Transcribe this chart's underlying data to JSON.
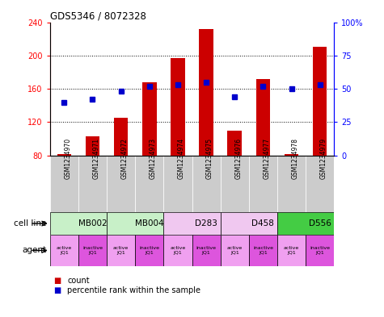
{
  "title": "GDS5346 / 8072328",
  "samples": [
    "GSM1234970",
    "GSM1234971",
    "GSM1234972",
    "GSM1234973",
    "GSM1234974",
    "GSM1234975",
    "GSM1234976",
    "GSM1234977",
    "GSM1234978",
    "GSM1234979"
  ],
  "counts": [
    82,
    103,
    125,
    168,
    197,
    232,
    110,
    172,
    82,
    210
  ],
  "percentiles": [
    40,
    42,
    48,
    52,
    53,
    55,
    44,
    52,
    50,
    53
  ],
  "ymin": 80,
  "ymax": 240,
  "yticks_left": [
    80,
    120,
    160,
    200,
    240
  ],
  "yticks_right": [
    0,
    25,
    50,
    75,
    100
  ],
  "cell_lines": [
    {
      "label": "MB002",
      "start": 0,
      "end": 2,
      "color": "#c8f0c8"
    },
    {
      "label": "MB004",
      "start": 2,
      "end": 4,
      "color": "#c8f0c8"
    },
    {
      "label": "D283",
      "start": 4,
      "end": 6,
      "color": "#f0c8f0"
    },
    {
      "label": "D458",
      "start": 6,
      "end": 8,
      "color": "#f0c8f0"
    },
    {
      "label": "D556",
      "start": 8,
      "end": 10,
      "color": "#44cc44"
    }
  ],
  "agents": [
    {
      "label": "active\nJQ1",
      "color": "#f0a0f0"
    },
    {
      "label": "inactive\nJQ1",
      "color": "#dd55dd"
    },
    {
      "label": "active\nJQ1",
      "color": "#f0a0f0"
    },
    {
      "label": "inactive\nJQ1",
      "color": "#dd55dd"
    },
    {
      "label": "active\nJQ1",
      "color": "#f0a0f0"
    },
    {
      "label": "inactive\nJQ1",
      "color": "#dd55dd"
    },
    {
      "label": "active\nJQ1",
      "color": "#f0a0f0"
    },
    {
      "label": "inactive\nJQ1",
      "color": "#dd55dd"
    },
    {
      "label": "active\nJQ1",
      "color": "#f0a0f0"
    },
    {
      "label": "inactive\nJQ1",
      "color": "#dd55dd"
    }
  ],
  "bar_color": "#cc0000",
  "dot_color": "#0000cc",
  "bar_width": 0.5,
  "legend_items": [
    {
      "label": "count",
      "color": "#cc0000"
    },
    {
      "label": "percentile rank within the sample",
      "color": "#0000cc"
    }
  ]
}
